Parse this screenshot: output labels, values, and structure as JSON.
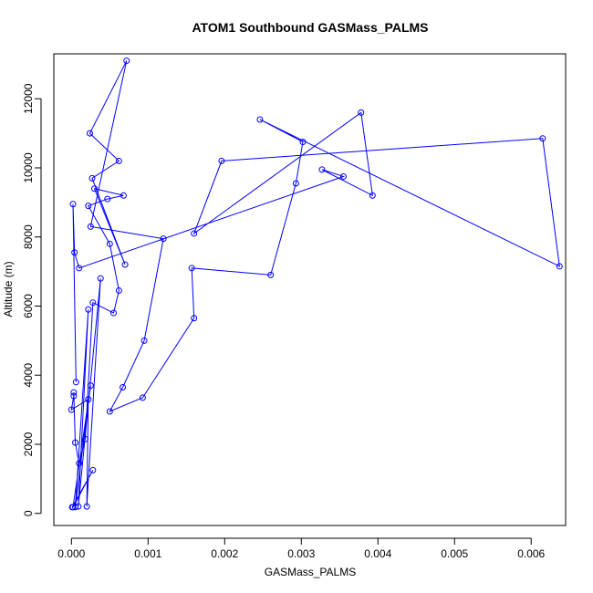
{
  "chart_data": {
    "type": "line",
    "title": "ATOM1 Southbound GASMass_PALMS",
    "xlabel": "GASMass_PALMS",
    "ylabel": "Altitude (m)",
    "xlim": [
      -0.00023,
      0.00645
    ],
    "ylim": [
      -350,
      13300
    ],
    "x_ticks": [
      0.0,
      0.001,
      0.002,
      0.003,
      0.004,
      0.005,
      0.006
    ],
    "x_tick_labels": [
      "0.000",
      "0.001",
      "0.002",
      "0.003",
      "0.004",
      "0.005",
      "0.006"
    ],
    "y_ticks": [
      0,
      2000,
      4000,
      6000,
      8000,
      10000,
      12000
    ],
    "y_tick_labels": [
      "0",
      "2000",
      "4000",
      "6000",
      "8000",
      "10000",
      "12000"
    ],
    "grid": false,
    "color": "#0000ff",
    "series": [
      {
        "markers": "open-circle",
        "points": [
          [
            1e-05,
            180
          ],
          [
            2e-05,
            180
          ],
          [
            5e-05,
            180
          ],
          [
            9e-05,
            200
          ],
          [
            0.0002,
            200
          ],
          [
            0.0,
            3000
          ],
          [
            3e-05,
            3400
          ],
          [
            3e-05,
            3500
          ],
          [
            5e-05,
            2050
          ],
          [
            0.0001,
            1450
          ],
          [
            0.00028,
            1250
          ],
          [
            0.00018,
            2150
          ],
          [
            0.00022,
            3300
          ],
          [
            0.00025,
            3700
          ],
          [
            0.00022,
            5900
          ],
          [
            0.00028,
            6100
          ],
          [
            0.00038,
            6800
          ],
          [
            0.00055,
            5800
          ],
          [
            0.00062,
            6450
          ],
          [
            0.0007,
            7200
          ],
          [
            0.0005,
            7800
          ],
          [
            0.00025,
            8300
          ],
          [
            0.00022,
            8900
          ],
          [
            0.0003,
            9400
          ],
          [
            0.00047,
            9100
          ],
          [
            0.00068,
            9200
          ],
          [
            0.00062,
            10200
          ],
          [
            0.00027,
            9700
          ],
          [
            0.00024,
            11000
          ],
          [
            0.00072,
            13100
          ],
          [
            0.0012,
            7950
          ],
          [
            0.00095,
            5000
          ],
          [
            0.00067,
            3650
          ],
          [
            0.0005,
            2950
          ],
          [
            0.00093,
            3350
          ],
          [
            0.0016,
            5650
          ],
          [
            0.00157,
            7100
          ],
          [
            0.0026,
            6900
          ],
          [
            0.00293,
            9550
          ],
          [
            0.00302,
            10750
          ],
          [
            0.00246,
            11400
          ],
          [
            0.00355,
            9750
          ],
          [
            0.00327,
            9950
          ],
          [
            0.00393,
            9200
          ],
          [
            0.00378,
            11600
          ],
          [
            0.0016,
            8100
          ],
          [
            0.00196,
            10200
          ],
          [
            0.00615,
            10850
          ],
          [
            0.00637,
            7150
          ],
          [
            0.0001,
            7100
          ],
          [
            4e-05,
            7550
          ],
          [
            2e-05,
            8950
          ],
          [
            6e-05,
            3800
          ]
        ],
        "path": [
          0,
          10,
          1,
          13,
          2,
          14,
          3,
          16,
          4,
          12,
          5,
          6,
          7,
          8,
          9,
          11,
          15,
          17,
          18,
          20,
          22,
          24,
          25,
          23,
          19,
          27,
          26,
          28,
          29,
          21,
          30,
          31,
          32,
          33,
          34,
          35,
          36,
          37,
          38,
          39,
          40,
          48,
          47,
          46,
          45,
          44,
          43,
          42,
          41,
          49,
          50,
          51,
          52
        ]
      }
    ]
  }
}
